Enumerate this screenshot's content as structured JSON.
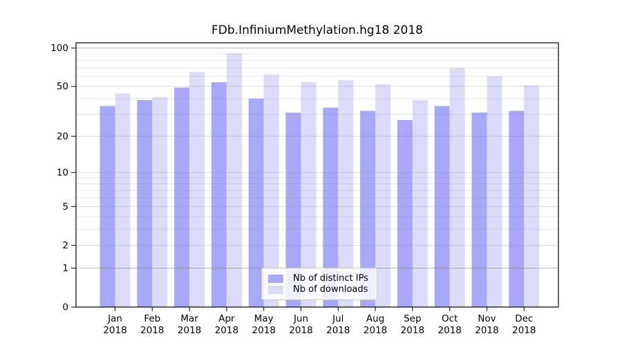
{
  "chart_data": {
    "type": "bar",
    "title": "FDb.InfiniumMethylation.hg18 2018",
    "categories": [
      "Jan",
      "Feb",
      "Mar",
      "Apr",
      "May",
      "Jun",
      "Jul",
      "Aug",
      "Sep",
      "Oct",
      "Nov",
      "Dec"
    ],
    "year_label": "2018",
    "series": [
      {
        "name": "Nb of distinct IPs",
        "color": "#a8a8f8",
        "values": [
          35,
          39,
          49,
          54,
          40,
          31,
          34,
          32,
          27,
          35,
          31,
          32
        ]
      },
      {
        "name": "Nb of downloads",
        "color": "#dcdcf8",
        "values": [
          44,
          41,
          65,
          91,
          62,
          54,
          56,
          52,
          39,
          70,
          60,
          51
        ]
      }
    ],
    "xlabel": "",
    "ylabel": "",
    "yscale": "log1p",
    "ylim": [
      0,
      110
    ],
    "yticks": [
      0,
      1,
      2,
      5,
      10,
      20,
      50,
      100
    ],
    "minor_gridlines": [
      3,
      4,
      6,
      7,
      8,
      9,
      30,
      40,
      60,
      70,
      80,
      90
    ],
    "emphasized_gridlines": [
      1,
      100
    ],
    "grid": true,
    "legend_position": "lower center",
    "colors": {
      "axis": "#000000",
      "text": "#000000",
      "grid_minor": "rgba(140,140,140,0.22)",
      "grid_major": "rgba(140,140,140,0.32)",
      "grid_emphasis": "rgba(120,120,120,0.55)",
      "legend_border": "#c9c9c9"
    }
  }
}
